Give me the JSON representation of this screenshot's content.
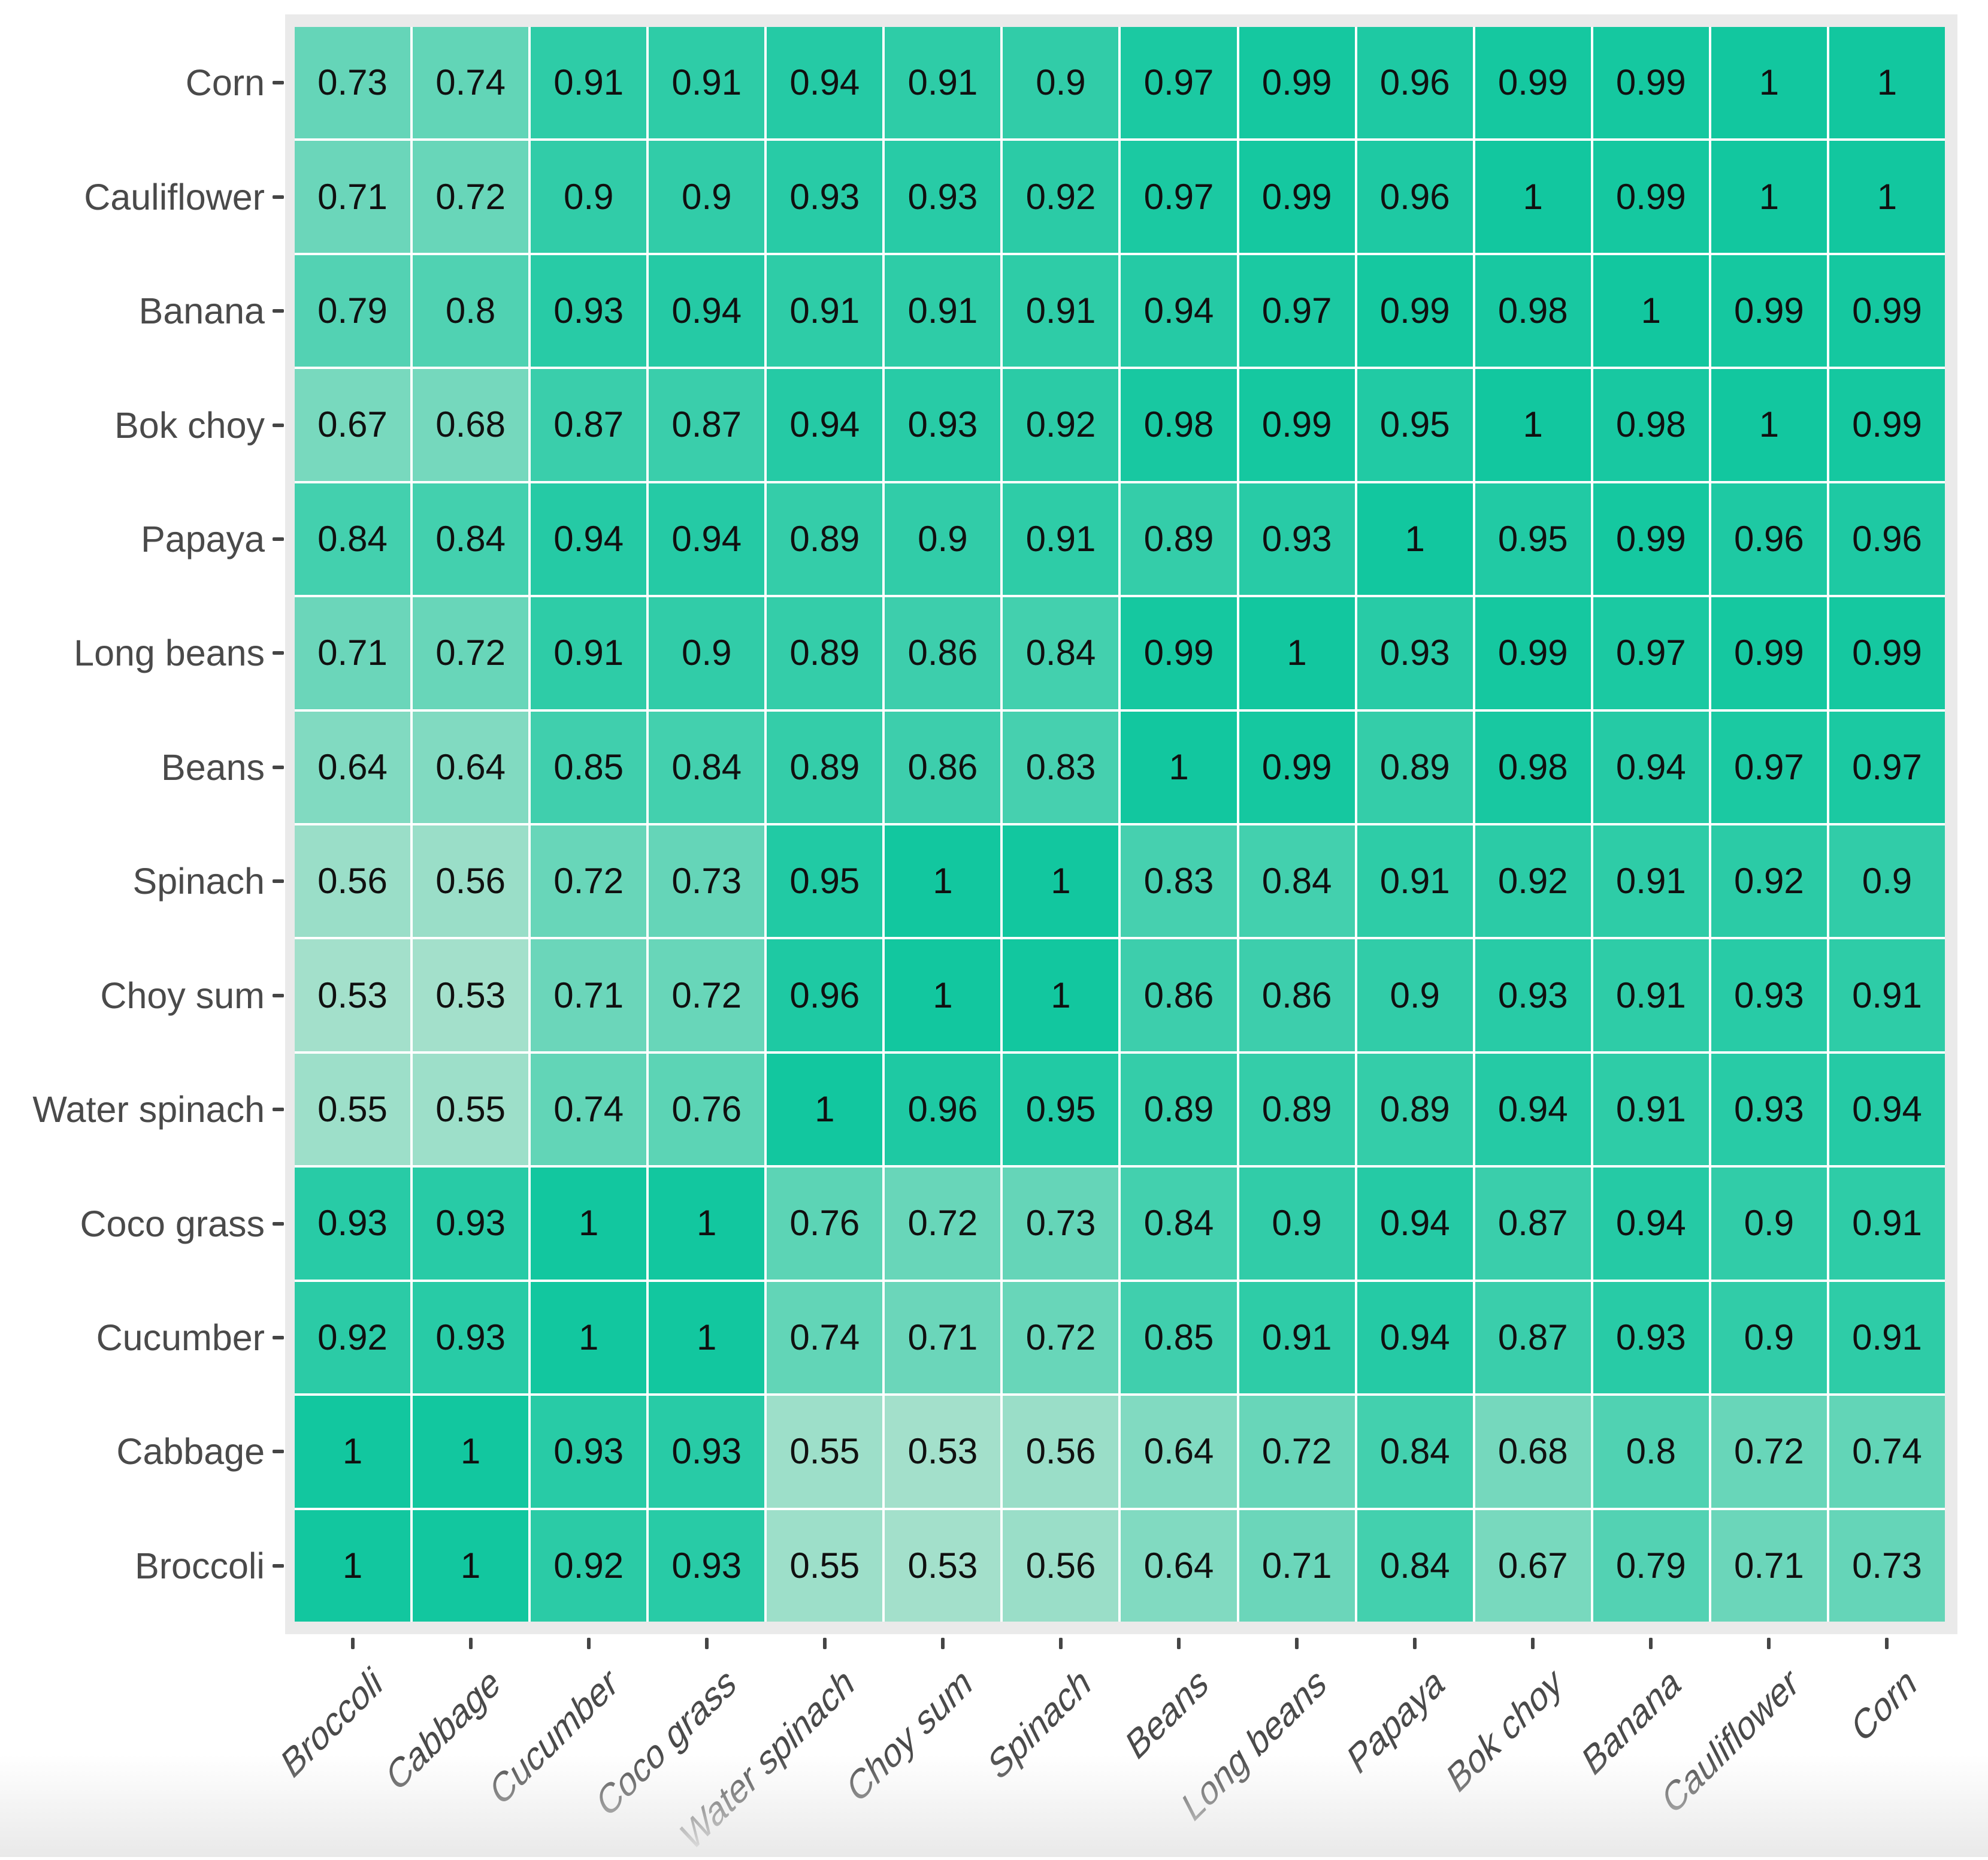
{
  "figure": {
    "kind": "correlation-heatmap-figure",
    "title": ""
  },
  "chart_data": {
    "type": "heatmap",
    "title": "",
    "xlabel": "",
    "ylabel": "",
    "legend": "none",
    "panel_background": "#eaeaea",
    "cell_border_color": "#ffffff",
    "value_text_color": "#101010",
    "axis_text_color": "#4a4a4a",
    "color_scale": {
      "min_value": 0.53,
      "max_value": 1,
      "min_color": "#a3e0cb",
      "max_color": "#12c79f"
    },
    "x_labels": [
      "Broccoli",
      "Cabbage",
      "Cucumber",
      "Coco grass",
      "Water spinach",
      "Choy sum",
      "Spinach",
      "Beans",
      "Long beans",
      "Papaya",
      "Bok choy",
      "Banana",
      "Cauliflower",
      "Corn"
    ],
    "y_labels": [
      "Corn",
      "Cauliflower",
      "Banana",
      "Bok choy",
      "Papaya",
      "Long beans",
      "Beans",
      "Spinach",
      "Choy sum",
      "Water spinach",
      "Coco grass",
      "Cucumber",
      "Cabbage",
      "Broccoli"
    ],
    "values": [
      [
        0.73,
        0.74,
        0.91,
        0.91,
        0.94,
        0.91,
        0.9,
        0.97,
        0.99,
        0.96,
        0.99,
        0.99,
        1,
        1
      ],
      [
        0.71,
        0.72,
        0.9,
        0.9,
        0.93,
        0.93,
        0.92,
        0.97,
        0.99,
        0.96,
        1,
        0.99,
        1,
        1
      ],
      [
        0.79,
        0.8,
        0.93,
        0.94,
        0.91,
        0.91,
        0.91,
        0.94,
        0.97,
        0.99,
        0.98,
        1,
        0.99,
        0.99
      ],
      [
        0.67,
        0.68,
        0.87,
        0.87,
        0.94,
        0.93,
        0.92,
        0.98,
        0.99,
        0.95,
        1,
        0.98,
        1,
        0.99
      ],
      [
        0.84,
        0.84,
        0.94,
        0.94,
        0.89,
        0.9,
        0.91,
        0.89,
        0.93,
        1,
        0.95,
        0.99,
        0.96,
        0.96
      ],
      [
        0.71,
        0.72,
        0.91,
        0.9,
        0.89,
        0.86,
        0.84,
        0.99,
        1,
        0.93,
        0.99,
        0.97,
        0.99,
        0.99
      ],
      [
        0.64,
        0.64,
        0.85,
        0.84,
        0.89,
        0.86,
        0.83,
        1,
        0.99,
        0.89,
        0.98,
        0.94,
        0.97,
        0.97
      ],
      [
        0.56,
        0.56,
        0.72,
        0.73,
        0.95,
        1,
        1,
        0.83,
        0.84,
        0.91,
        0.92,
        0.91,
        0.92,
        0.9
      ],
      [
        0.53,
        0.53,
        0.71,
        0.72,
        0.96,
        1,
        1,
        0.86,
        0.86,
        0.9,
        0.93,
        0.91,
        0.93,
        0.91
      ],
      [
        0.55,
        0.55,
        0.74,
        0.76,
        1,
        0.96,
        0.95,
        0.89,
        0.89,
        0.89,
        0.94,
        0.91,
        0.93,
        0.94
      ],
      [
        0.93,
        0.93,
        1,
        1,
        0.76,
        0.72,
        0.73,
        0.84,
        0.9,
        0.94,
        0.87,
        0.94,
        0.9,
        0.91
      ],
      [
        0.92,
        0.93,
        1,
        1,
        0.74,
        0.71,
        0.72,
        0.85,
        0.91,
        0.94,
        0.87,
        0.93,
        0.9,
        0.91
      ],
      [
        1,
        1,
        0.93,
        0.93,
        0.55,
        0.53,
        0.56,
        0.64,
        0.72,
        0.84,
        0.68,
        0.8,
        0.72,
        0.74
      ],
      [
        1,
        1,
        0.92,
        0.93,
        0.55,
        0.53,
        0.56,
        0.64,
        0.71,
        0.84,
        0.67,
        0.79,
        0.71,
        0.73
      ]
    ]
  }
}
